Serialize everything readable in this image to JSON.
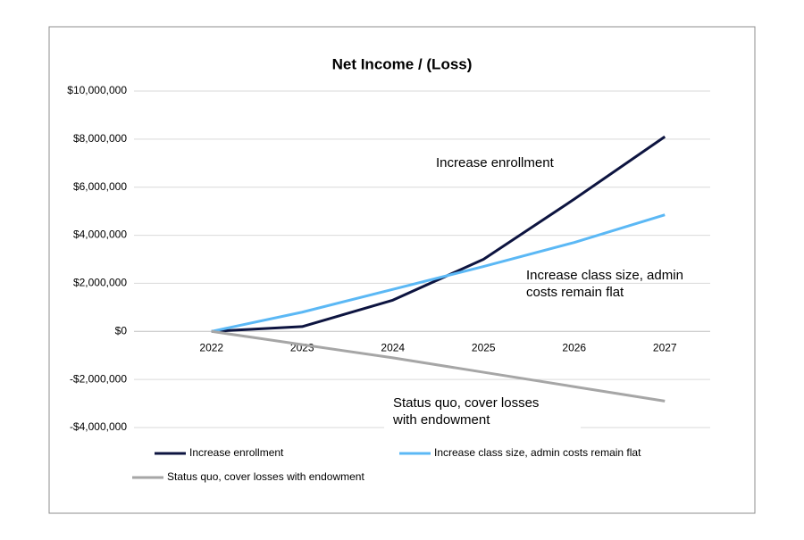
{
  "chart_data": {
    "type": "line",
    "title": "Net Income / (Loss)",
    "categories": [
      "2022",
      "2023",
      "2024",
      "2025",
      "2026",
      "2027"
    ],
    "series": [
      {
        "name": "Increase enrollment",
        "color": "#0d1440",
        "values": [
          0,
          200000,
          1300000,
          3000000,
          5500000,
          8100000
        ]
      },
      {
        "name": "Increase class size, admin costs remain flat",
        "color": "#5bb8f5",
        "values": [
          0,
          800000,
          1750000,
          2700000,
          3700000,
          4850000
        ]
      },
      {
        "name": "Status quo, cover losses with endowment",
        "color": "#a6a6a6",
        "values": [
          0,
          -550000,
          -1100000,
          -1700000,
          -2300000,
          -2900000
        ]
      }
    ],
    "ylim": [
      -4000000,
      10000000
    ],
    "yticks": [
      {
        "value": -4000000,
        "label": "-$4,000,000"
      },
      {
        "value": -2000000,
        "label": "-$2,000,000"
      },
      {
        "value": 0,
        "label": "$0"
      },
      {
        "value": 2000000,
        "label": "$2,000,000"
      },
      {
        "value": 4000000,
        "label": "$4,000,000"
      },
      {
        "value": 6000000,
        "label": "$6,000,000"
      },
      {
        "value": 8000000,
        "label": "$8,000,000"
      },
      {
        "value": 10000000,
        "label": "$10,000,000"
      }
    ],
    "grid": true,
    "legend": "bottom",
    "annotations": [
      {
        "lines": [
          "Increase enrollment"
        ]
      },
      {
        "lines": [
          "Increase class size, admin",
          "costs remain flat"
        ]
      },
      {
        "lines": [
          "Status quo, cover losses",
          "with endowment"
        ]
      }
    ]
  }
}
